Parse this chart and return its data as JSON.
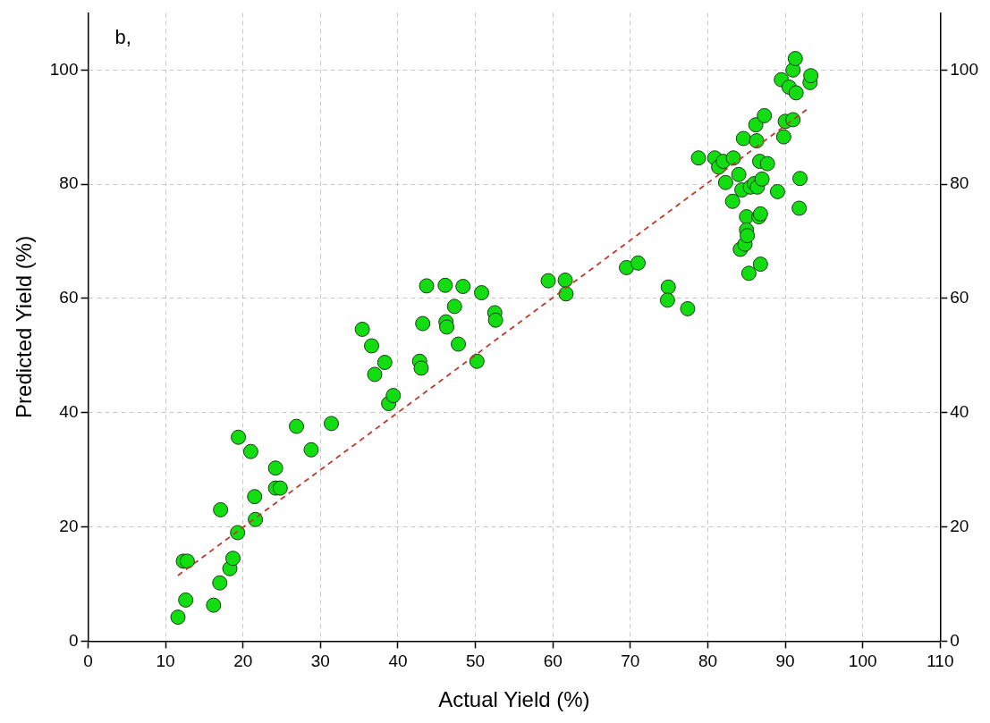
{
  "chart_data": {
    "type": "scatter",
    "xlabel": "Actual Yield (%)",
    "ylabel": "Predicted Yield (%)",
    "annotations": [
      "b,"
    ],
    "xlim": [
      0,
      110
    ],
    "xticks": [
      0,
      10,
      20,
      30,
      40,
      50,
      60,
      70,
      80,
      90,
      100,
      110
    ],
    "ylim": [
      0,
      110
    ],
    "yticks": [
      0,
      20,
      40,
      60,
      80,
      100
    ],
    "y2lim": [
      0,
      110
    ],
    "y2ticks": [
      0,
      20,
      40,
      60,
      80,
      100
    ],
    "grid": true,
    "legend": false,
    "marker": "circle",
    "series": [
      {
        "type": "scatter",
        "color": "#11dd11",
        "x": [
          11.6,
          12.3,
          12.8,
          12.6,
          16.2,
          17,
          17.1,
          18.3,
          18.7,
          19.3,
          19.4,
          21,
          21.5,
          21.6,
          24.2,
          24.2,
          24.8,
          26.9,
          28.8,
          31.4,
          35.4,
          36.6,
          37,
          38.3,
          38.8,
          39.4,
          42.8,
          43,
          43.2,
          43.7,
          46.1,
          46.2,
          46.3,
          47.3,
          47.8,
          48.4,
          50.2,
          50.8,
          52.5,
          52.6,
          59.4,
          61.6,
          61.7,
          69.5,
          71,
          74.9,
          74.8,
          77.4,
          78.8,
          80.9,
          81.4,
          82,
          82.3,
          83.3,
          83.2,
          84,
          84.2,
          84.4,
          84.8,
          84.6,
          85,
          85,
          85.1,
          85.3,
          85.5,
          86,
          86.2,
          86.3,
          86.4,
          86.6,
          86.8,
          86.7,
          86.8,
          87,
          87.3,
          87.7,
          89,
          89.5,
          89.8,
          90,
          90.5,
          91,
          91,
          91.3,
          91.4,
          91.8,
          91.9,
          93.2,
          93.3
        ],
        "values": [
          4.2,
          14,
          14,
          7.2,
          6.3,
          10.2,
          23,
          12.7,
          14.5,
          19,
          35.7,
          33.2,
          25.3,
          21.3,
          30.3,
          26.8,
          26.8,
          37.6,
          33.5,
          38.1,
          54.6,
          51.7,
          46.7,
          48.8,
          41.6,
          43,
          49,
          47.8,
          55.6,
          62.2,
          62.3,
          55.9,
          55,
          58.6,
          52,
          62.1,
          49,
          61,
          57.5,
          56.2,
          63.1,
          63.2,
          60.8,
          65.4,
          66.2,
          62,
          59.7,
          58.2,
          84.6,
          84.6,
          83,
          84,
          80.3,
          84.6,
          77,
          81.7,
          68.6,
          79,
          69.5,
          88,
          74.3,
          72,
          71,
          64.4,
          79.5,
          80.1,
          90.4,
          87.6,
          79.5,
          74.3,
          66,
          84,
          74.8,
          80.9,
          92,
          83.6,
          78.7,
          98.3,
          88.3,
          91,
          97,
          91.3,
          100,
          102,
          96,
          75.8,
          81,
          97.8,
          99
        ]
      },
      {
        "type": "line",
        "color": "#c0392b",
        "line_style": "dashed",
        "marker": "none",
        "x": [
          11.6,
          93.2
        ],
        "values": [
          11.5,
          93.5
        ]
      }
    ]
  }
}
